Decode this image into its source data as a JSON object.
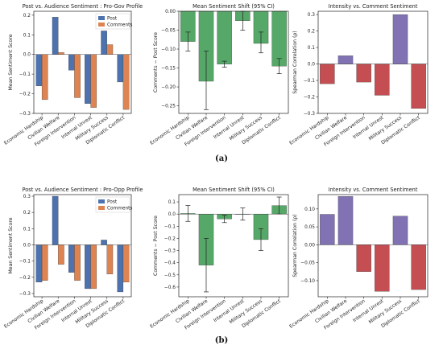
{
  "categories": [
    "Economic Hardship",
    "Civilian Welfare",
    "Foreign Intervention",
    "Internal Unrest",
    "Military Success",
    "Diplomatic Conflict"
  ],
  "colors": {
    "post": "#4c72b0",
    "comments": "#dd8452",
    "shift": "#55a868",
    "corr_positive": "#8172b3",
    "corr_negative": "#c44e52"
  },
  "rows": [
    {
      "label": "(a)",
      "charts": [
        {
          "type": "bar",
          "title": "Post vs. Audience Sentiment : Pro-Gov Profile",
          "ylabel": "Mean Sentiment Score",
          "ylim": [
            -0.3,
            0.22
          ],
          "yticks": [
            -0.3,
            -0.2,
            -0.1,
            0.0,
            0.1,
            0.2
          ],
          "ytick_labels": [
            "−0.3",
            "−0.2",
            "−0.1",
            "0.0",
            "0.1",
            "0.2"
          ],
          "legend": [
            "Post",
            "Comments"
          ],
          "legend_position": "top-right",
          "series": [
            {
              "name": "Post",
              "values": [
                -0.16,
                0.19,
                -0.08,
                -0.25,
                0.12,
                -0.14
              ]
            },
            {
              "name": "Comments",
              "values": [
                -0.23,
                0.01,
                -0.22,
                -0.27,
                0.05,
                -0.28
              ]
            }
          ]
        },
        {
          "type": "bar",
          "title": "Mean Sentiment Shift (95% CI)",
          "ylabel": "Comments − Post Score",
          "ylim": [
            -0.27,
            0.0
          ],
          "yticks": [
            -0.25,
            -0.2,
            -0.15,
            -0.1,
            -0.05,
            0.0
          ],
          "ytick_labels": [
            "−0.25",
            "−0.20",
            "−0.15",
            "−0.10",
            "−0.05",
            "0.00"
          ],
          "values": [
            -0.08,
            -0.185,
            -0.14,
            -0.025,
            -0.085,
            -0.145
          ],
          "ci_low": [
            -0.105,
            -0.26,
            -0.148,
            -0.05,
            -0.11,
            -0.165
          ],
          "ci_high": [
            -0.055,
            -0.105,
            -0.132,
            0.0,
            -0.055,
            -0.125
          ]
        },
        {
          "type": "bar",
          "title": "Intensity vs. Comment Sentiment",
          "ylabel": "Spearman Correlation (ρ)",
          "ylim": [
            -0.3,
            0.32
          ],
          "yticks": [
            -0.3,
            -0.2,
            -0.1,
            0.0,
            0.1,
            0.2,
            0.3
          ],
          "ytick_labels": [
            "−0.3",
            "−0.2",
            "−0.1",
            "0.0",
            "0.1",
            "0.2",
            "0.3"
          ],
          "values": [
            -0.12,
            0.05,
            -0.11,
            -0.19,
            0.3,
            -0.27
          ]
        }
      ]
    },
    {
      "label": "(b)",
      "charts": [
        {
          "type": "bar",
          "title": "Post vs. Audience Sentiment : Pro-Opp Profile",
          "ylabel": "Mean Sentiment Score",
          "ylim": [
            -0.32,
            0.31
          ],
          "yticks": [
            -0.3,
            -0.2,
            -0.1,
            0.0,
            0.1,
            0.2,
            0.3
          ],
          "ytick_labels": [
            "−0.3",
            "−0.2",
            "−0.1",
            "0.0",
            "0.1",
            "0.2",
            "0.3"
          ],
          "legend": [
            "Post",
            "Comments"
          ],
          "legend_position": "top-right",
          "series": [
            {
              "name": "Post",
              "values": [
                -0.23,
                0.3,
                -0.17,
                -0.27,
                0.03,
                -0.29
              ]
            },
            {
              "name": "Comments",
              "values": [
                -0.22,
                -0.12,
                -0.22,
                -0.27,
                -0.18,
                -0.23
              ]
            }
          ]
        },
        {
          "type": "bar",
          "title": "Mean Sentiment Shift (95% CI)",
          "ylabel": "Comments − Post Score",
          "ylim": [
            -0.68,
            0.16
          ],
          "yticks": [
            -0.6,
            -0.5,
            -0.4,
            -0.3,
            -0.2,
            -0.1,
            0.0,
            0.1
          ],
          "ytick_labels": [
            "−0.6",
            "−0.5",
            "−0.4",
            "−0.3",
            "−0.2",
            "−0.1",
            "0.0",
            "0.1"
          ],
          "values": [
            0.005,
            -0.42,
            -0.04,
            0.0,
            -0.21,
            0.07
          ],
          "ci_low": [
            -0.06,
            -0.64,
            -0.07,
            -0.05,
            -0.3,
            0.0
          ],
          "ci_high": [
            0.07,
            -0.2,
            -0.01,
            0.05,
            -0.12,
            0.14
          ]
        },
        {
          "type": "bar",
          "title": "Intensity vs. Comment Sentiment",
          "ylabel": "Spearman Correlation (ρ)",
          "ylim": [
            -0.145,
            0.14
          ],
          "yticks": [
            -0.1,
            -0.05,
            0.0,
            0.05,
            0.1
          ],
          "ytick_labels": [
            "−0.10",
            "−0.05",
            "0.00",
            "0.05",
            "0.10"
          ],
          "values": [
            0.085,
            0.135,
            -0.075,
            -0.13,
            0.08,
            -0.125
          ]
        }
      ]
    }
  ]
}
